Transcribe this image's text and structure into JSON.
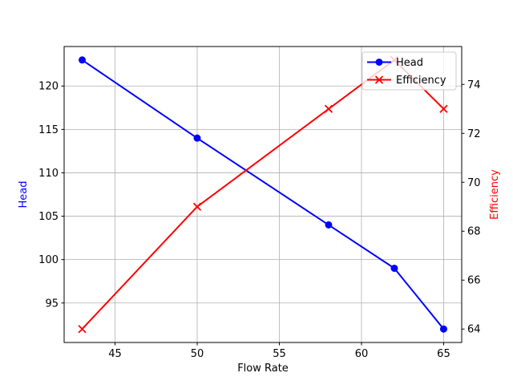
{
  "figure": {
    "background": "#ffffff"
  },
  "chart_data": {
    "type": "line",
    "x": [
      43,
      50,
      58,
      62,
      65
    ],
    "series": [
      {
        "name": "Head",
        "axis": "left",
        "color": "#0000ff",
        "marker": "circle",
        "values": [
          123,
          114,
          104,
          99,
          92
        ]
      },
      {
        "name": "Efficiency",
        "axis": "right",
        "color": "#ff0000",
        "marker": "x",
        "values": [
          64,
          69,
          73,
          75,
          73
        ]
      }
    ],
    "xlabel": "Flow Rate",
    "ylabel_left": "Head",
    "ylabel_right": "Efficiency",
    "xlim": [
      41.9,
      66.1
    ],
    "ylim_left": [
      90.45,
      124.55
    ],
    "ylim_right": [
      63.45,
      75.55
    ],
    "xticks": [
      45,
      50,
      55,
      60,
      65
    ],
    "yticks_left": [
      95,
      100,
      105,
      110,
      115,
      120
    ],
    "yticks_right": [
      64,
      66,
      68,
      70,
      72,
      74
    ],
    "grid": true,
    "legend": {
      "position": "upper right",
      "entries": [
        "Head",
        "Efficiency"
      ]
    },
    "colors": {
      "head_line": "#0000ff",
      "efficiency_line": "#ff0000",
      "left_axis_label": "#0000ff",
      "right_axis_label": "#ff0000",
      "grid": "#b0b0b0",
      "spine": "#000000",
      "tick_label": "#000000",
      "legend_border": "#cccccc",
      "background": "#ffffff"
    }
  }
}
